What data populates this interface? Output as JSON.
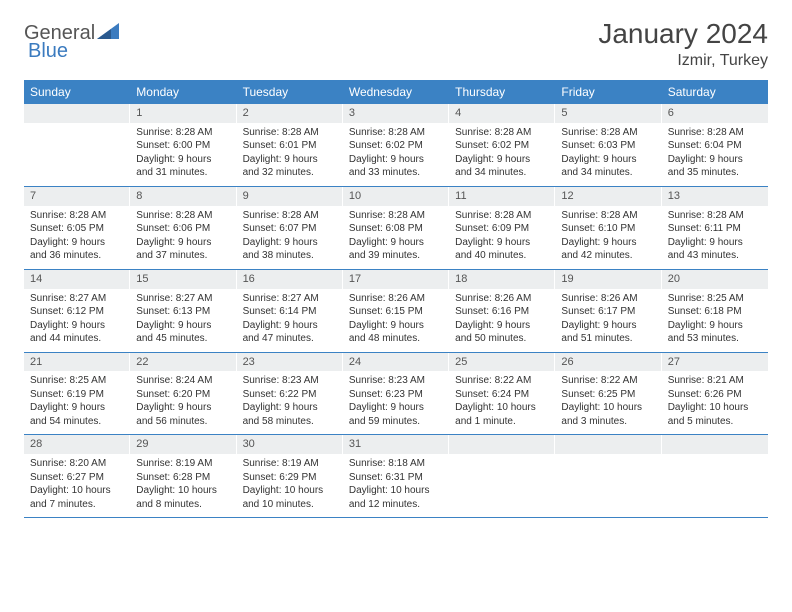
{
  "logo": {
    "text1": "General",
    "text2": "Blue"
  },
  "title": "January 2024",
  "location": "Izmir, Turkey",
  "colors": {
    "header_bg": "#3b82c4",
    "header_text": "#ffffff",
    "daynum_bg": "#eceeef",
    "border": "#3b82c4",
    "logo_blue": "#3b7bbf"
  },
  "dow": [
    "Sunday",
    "Monday",
    "Tuesday",
    "Wednesday",
    "Thursday",
    "Friday",
    "Saturday"
  ],
  "weeks": [
    [
      {
        "n": "",
        "sunrise": "",
        "sunset": "",
        "daylight": ""
      },
      {
        "n": "1",
        "sunrise": "Sunrise: 8:28 AM",
        "sunset": "Sunset: 6:00 PM",
        "daylight": "Daylight: 9 hours and 31 minutes."
      },
      {
        "n": "2",
        "sunrise": "Sunrise: 8:28 AM",
        "sunset": "Sunset: 6:01 PM",
        "daylight": "Daylight: 9 hours and 32 minutes."
      },
      {
        "n": "3",
        "sunrise": "Sunrise: 8:28 AM",
        "sunset": "Sunset: 6:02 PM",
        "daylight": "Daylight: 9 hours and 33 minutes."
      },
      {
        "n": "4",
        "sunrise": "Sunrise: 8:28 AM",
        "sunset": "Sunset: 6:02 PM",
        "daylight": "Daylight: 9 hours and 34 minutes."
      },
      {
        "n": "5",
        "sunrise": "Sunrise: 8:28 AM",
        "sunset": "Sunset: 6:03 PM",
        "daylight": "Daylight: 9 hours and 34 minutes."
      },
      {
        "n": "6",
        "sunrise": "Sunrise: 8:28 AM",
        "sunset": "Sunset: 6:04 PM",
        "daylight": "Daylight: 9 hours and 35 minutes."
      }
    ],
    [
      {
        "n": "7",
        "sunrise": "Sunrise: 8:28 AM",
        "sunset": "Sunset: 6:05 PM",
        "daylight": "Daylight: 9 hours and 36 minutes."
      },
      {
        "n": "8",
        "sunrise": "Sunrise: 8:28 AM",
        "sunset": "Sunset: 6:06 PM",
        "daylight": "Daylight: 9 hours and 37 minutes."
      },
      {
        "n": "9",
        "sunrise": "Sunrise: 8:28 AM",
        "sunset": "Sunset: 6:07 PM",
        "daylight": "Daylight: 9 hours and 38 minutes."
      },
      {
        "n": "10",
        "sunrise": "Sunrise: 8:28 AM",
        "sunset": "Sunset: 6:08 PM",
        "daylight": "Daylight: 9 hours and 39 minutes."
      },
      {
        "n": "11",
        "sunrise": "Sunrise: 8:28 AM",
        "sunset": "Sunset: 6:09 PM",
        "daylight": "Daylight: 9 hours and 40 minutes."
      },
      {
        "n": "12",
        "sunrise": "Sunrise: 8:28 AM",
        "sunset": "Sunset: 6:10 PM",
        "daylight": "Daylight: 9 hours and 42 minutes."
      },
      {
        "n": "13",
        "sunrise": "Sunrise: 8:28 AM",
        "sunset": "Sunset: 6:11 PM",
        "daylight": "Daylight: 9 hours and 43 minutes."
      }
    ],
    [
      {
        "n": "14",
        "sunrise": "Sunrise: 8:27 AM",
        "sunset": "Sunset: 6:12 PM",
        "daylight": "Daylight: 9 hours and 44 minutes."
      },
      {
        "n": "15",
        "sunrise": "Sunrise: 8:27 AM",
        "sunset": "Sunset: 6:13 PM",
        "daylight": "Daylight: 9 hours and 45 minutes."
      },
      {
        "n": "16",
        "sunrise": "Sunrise: 8:27 AM",
        "sunset": "Sunset: 6:14 PM",
        "daylight": "Daylight: 9 hours and 47 minutes."
      },
      {
        "n": "17",
        "sunrise": "Sunrise: 8:26 AM",
        "sunset": "Sunset: 6:15 PM",
        "daylight": "Daylight: 9 hours and 48 minutes."
      },
      {
        "n": "18",
        "sunrise": "Sunrise: 8:26 AM",
        "sunset": "Sunset: 6:16 PM",
        "daylight": "Daylight: 9 hours and 50 minutes."
      },
      {
        "n": "19",
        "sunrise": "Sunrise: 8:26 AM",
        "sunset": "Sunset: 6:17 PM",
        "daylight": "Daylight: 9 hours and 51 minutes."
      },
      {
        "n": "20",
        "sunrise": "Sunrise: 8:25 AM",
        "sunset": "Sunset: 6:18 PM",
        "daylight": "Daylight: 9 hours and 53 minutes."
      }
    ],
    [
      {
        "n": "21",
        "sunrise": "Sunrise: 8:25 AM",
        "sunset": "Sunset: 6:19 PM",
        "daylight": "Daylight: 9 hours and 54 minutes."
      },
      {
        "n": "22",
        "sunrise": "Sunrise: 8:24 AM",
        "sunset": "Sunset: 6:20 PM",
        "daylight": "Daylight: 9 hours and 56 minutes."
      },
      {
        "n": "23",
        "sunrise": "Sunrise: 8:23 AM",
        "sunset": "Sunset: 6:22 PM",
        "daylight": "Daylight: 9 hours and 58 minutes."
      },
      {
        "n": "24",
        "sunrise": "Sunrise: 8:23 AM",
        "sunset": "Sunset: 6:23 PM",
        "daylight": "Daylight: 9 hours and 59 minutes."
      },
      {
        "n": "25",
        "sunrise": "Sunrise: 8:22 AM",
        "sunset": "Sunset: 6:24 PM",
        "daylight": "Daylight: 10 hours and 1 minute."
      },
      {
        "n": "26",
        "sunrise": "Sunrise: 8:22 AM",
        "sunset": "Sunset: 6:25 PM",
        "daylight": "Daylight: 10 hours and 3 minutes."
      },
      {
        "n": "27",
        "sunrise": "Sunrise: 8:21 AM",
        "sunset": "Sunset: 6:26 PM",
        "daylight": "Daylight: 10 hours and 5 minutes."
      }
    ],
    [
      {
        "n": "28",
        "sunrise": "Sunrise: 8:20 AM",
        "sunset": "Sunset: 6:27 PM",
        "daylight": "Daylight: 10 hours and 7 minutes."
      },
      {
        "n": "29",
        "sunrise": "Sunrise: 8:19 AM",
        "sunset": "Sunset: 6:28 PM",
        "daylight": "Daylight: 10 hours and 8 minutes."
      },
      {
        "n": "30",
        "sunrise": "Sunrise: 8:19 AM",
        "sunset": "Sunset: 6:29 PM",
        "daylight": "Daylight: 10 hours and 10 minutes."
      },
      {
        "n": "31",
        "sunrise": "Sunrise: 8:18 AM",
        "sunset": "Sunset: 6:31 PM",
        "daylight": "Daylight: 10 hours and 12 minutes."
      },
      {
        "n": "",
        "sunrise": "",
        "sunset": "",
        "daylight": ""
      },
      {
        "n": "",
        "sunrise": "",
        "sunset": "",
        "daylight": ""
      },
      {
        "n": "",
        "sunrise": "",
        "sunset": "",
        "daylight": ""
      }
    ]
  ]
}
